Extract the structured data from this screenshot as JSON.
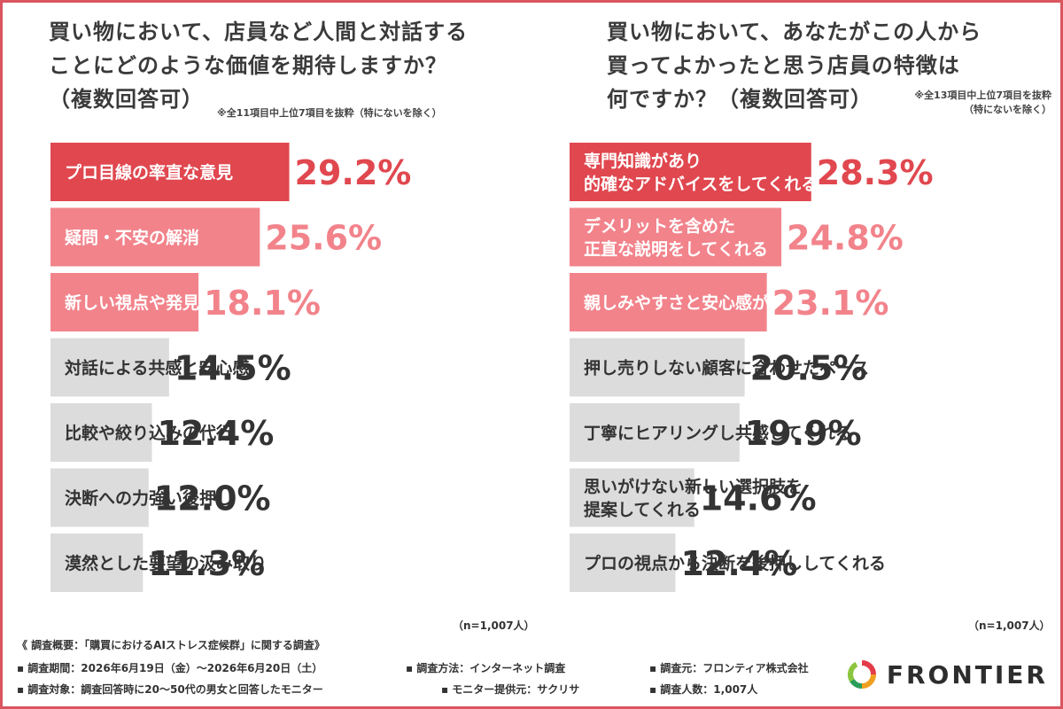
{
  "left_panel": {
    "title_lines": [
      "買い物において、店員など人間と対話する",
      "ことにどのような価値を期待しますか？",
      "（複数回答可）"
    ],
    "note": "※全11項目中上位7項目を抜粋（特にないを除く）",
    "sample": "（n=1,007人）"
  },
  "right_panel": {
    "title_lines": [
      "買い物において、あなたがこの人から",
      "買ってよかったと思う店員の特徴は",
      "何ですか？（複数回答可）"
    ],
    "note_lines": [
      "※全13項目中上位7項目を抜粋",
      "（特にないを除く）"
    ],
    "sample": "（n=1,007人）"
  },
  "colors": {
    "dark": "#e0474f",
    "light": "#f2838b",
    "gray": "#dcdcdc",
    "text_dark": "#333333",
    "accent_text": "#e0474f",
    "light_text": "#f2838b",
    "border": "#d95560"
  },
  "chart_data": [
    {
      "type": "bar",
      "orientation": "horizontal",
      "categories": [
        "プロ目線の率直な意見",
        "疑問・不安の解消",
        "新しい視点や発見の提供",
        "対話による共感と安心感",
        "比較や絞り込みの代行",
        "決断への力強い後押し",
        "漠然とした要望の汲み取り"
      ],
      "labels": [
        [
          "プロ目線の率直な意見"
        ],
        [
          "疑問・不安の解消"
        ],
        [
          "新しい視点や発見の提供"
        ],
        [
          "対話による共感と安心感"
        ],
        [
          "比較や絞り込みの代行"
        ],
        [
          "決断への力強い後押し"
        ],
        [
          "漠然とした要望の汲み取り"
        ]
      ],
      "values": [
        29.2,
        25.6,
        18.1,
        14.5,
        12.4,
        12.0,
        11.3
      ],
      "value_labels": [
        "29.2%",
        "25.6%",
        "18.1%",
        "14.5%",
        "12.4%",
        "12.0%",
        "11.3%"
      ],
      "unit": "%",
      "xlim": [
        0,
        45.5
      ]
    },
    {
      "type": "bar",
      "orientation": "horizontal",
      "categories": [
        "専門知識があり的確なアドバイスをしてくれる",
        "デメリットを含めた正直な説明をしてくれる",
        "親しみやすさと安心感がある",
        "押し売りしない顧客に合わせたペース",
        "丁寧にヒアリングし共感してくれる",
        "思いがけない新しい選択肢を提案してくれる",
        "プロの視点から決断を後押ししてくれる"
      ],
      "labels": [
        [
          "専門知識があり",
          "的確なアドバイスをしてくれる"
        ],
        [
          "デメリットを含めた",
          "正直な説明をしてくれる"
        ],
        [
          "親しみやすさと安心感がある"
        ],
        [
          "押し売りしない顧客に合わせたペース"
        ],
        [
          "丁寧にヒアリングし共感してくれる"
        ],
        [
          "思いがけない新しい選択肢を",
          "提案してくれる"
        ],
        [
          "プロの視点から決断を後押ししてくれる"
        ]
      ],
      "values": [
        28.3,
        24.8,
        23.1,
        20.5,
        19.9,
        14.6,
        12.4
      ],
      "value_labels": [
        "28.3%",
        "24.8%",
        "23.1%",
        "20.5%",
        "19.9%",
        "14.6%",
        "12.4%"
      ],
      "unit": "%",
      "xlim": [
        0,
        41.5
      ]
    }
  ],
  "footer": {
    "overview": "《 調査概要：「購買におけるAIストレス症候群」に関する調査》",
    "period": "▪ 調査期間：2026年6月19日（金）〜2026年6月20日（土）",
    "method": "▪ 調査方法：インターネット調査",
    "organizer": "▪ 調査元：フロンティア株式会社",
    "target": "▪ 調査対象：調査回答時に20〜50代の男女と回答したモニター",
    "provider": "▪ モニター提供元：サクリサ",
    "count": "▪ 調査人数：1,007人"
  },
  "logo": {
    "text": "FRONTIER",
    "icon": "frontier-ring-icon"
  }
}
